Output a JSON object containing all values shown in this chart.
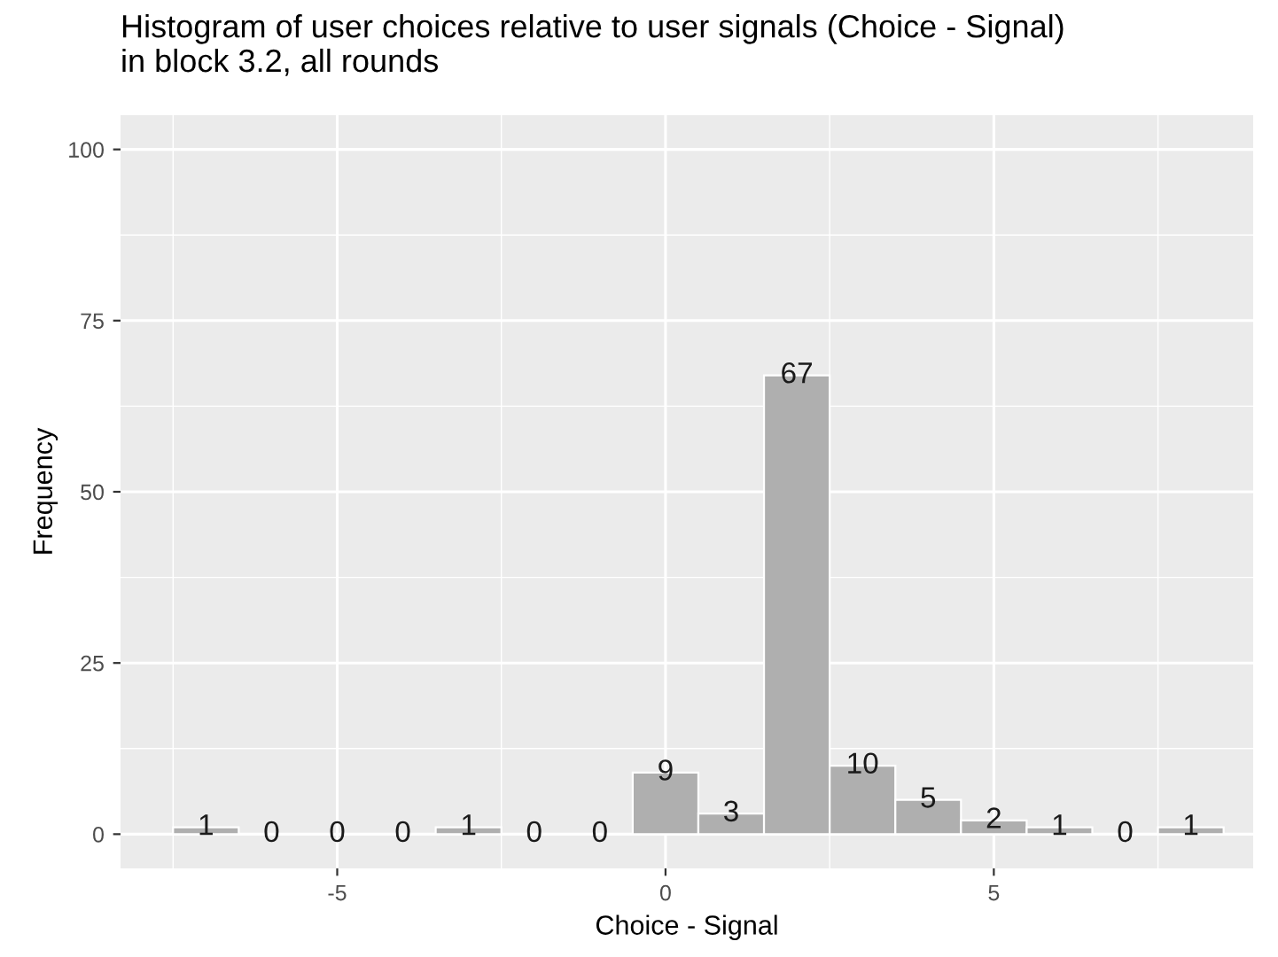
{
  "chart_data": {
    "type": "histogram",
    "title": "Histogram of user choices relative to user signals (Choice - Signal)\nin block 3.2, all rounds",
    "xlabel": "Choice - Signal",
    "ylabel": "Frequency",
    "bins": [
      -7.5,
      -6.5,
      -5.5,
      -4.5,
      -3.5,
      -2.5,
      -1.5,
      -0.5,
      0.5,
      1.5,
      2.5,
      3.5,
      4.5,
      5.5,
      6.5,
      7.5,
      8.5
    ],
    "values": [
      1,
      0,
      0,
      0,
      1,
      0,
      0,
      9,
      3,
      67,
      10,
      5,
      2,
      1,
      0,
      1
    ],
    "color": "#afafaf",
    "data_labels": true,
    "xlim": [
      -8.3,
      8.95
    ],
    "xticks": [
      -5,
      0,
      5
    ],
    "ylim": [
      -5,
      105
    ],
    "yticks": [
      0,
      25,
      50,
      75,
      100
    ],
    "grid": true
  }
}
